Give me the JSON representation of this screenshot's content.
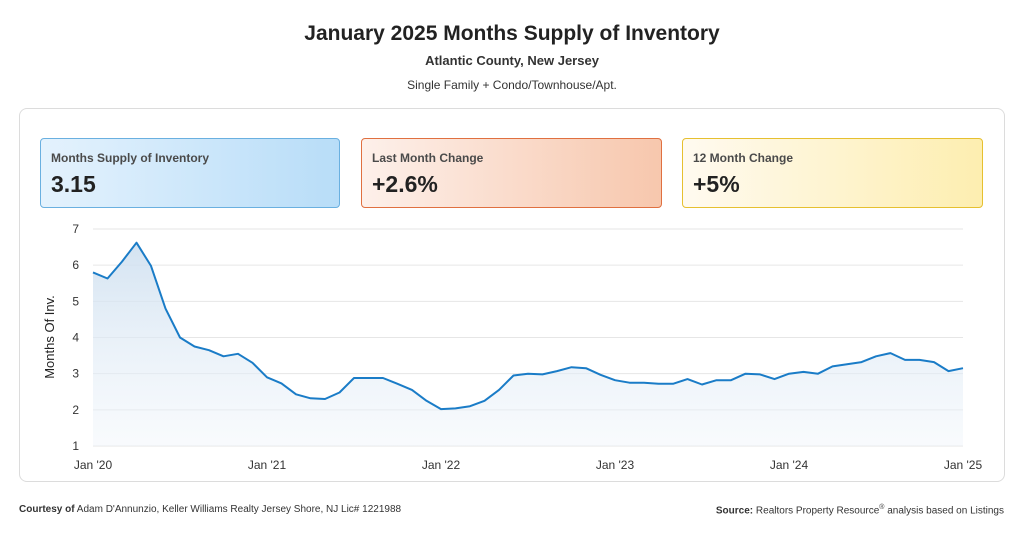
{
  "header": {
    "title": "January 2025 Months Supply of Inventory",
    "subtitle": "Atlantic County, New Jersey",
    "segment": "Single Family + Condo/Townhouse/Apt."
  },
  "kpis": [
    {
      "label": "Months Supply of Inventory",
      "value": "3.15"
    },
    {
      "label": "Last Month Change",
      "value": "+2.6%"
    },
    {
      "label": "12 Month Change",
      "value": "+5%"
    }
  ],
  "chart_data": {
    "type": "area",
    "title": "January 2025 Months Supply of Inventory",
    "ylabel": "Months Of Inv.",
    "xlabel": "",
    "ylim": [
      1,
      7
    ],
    "yticks": [
      1,
      2,
      3,
      4,
      5,
      6,
      7
    ],
    "xtick_labels": [
      "Jan '20",
      "Jan '21",
      "Jan '22",
      "Jan '23",
      "Jan '24",
      "Jan '25"
    ],
    "grid": true,
    "line_color": "#1a7cc7",
    "x": [
      "2020-01",
      "2020-02",
      "2020-03",
      "2020-04",
      "2020-05",
      "2020-06",
      "2020-07",
      "2020-08",
      "2020-09",
      "2020-10",
      "2020-11",
      "2020-12",
      "2021-01",
      "2021-02",
      "2021-03",
      "2021-04",
      "2021-05",
      "2021-06",
      "2021-07",
      "2021-08",
      "2021-09",
      "2021-10",
      "2021-11",
      "2021-12",
      "2022-01",
      "2022-02",
      "2022-03",
      "2022-04",
      "2022-05",
      "2022-06",
      "2022-07",
      "2022-08",
      "2022-09",
      "2022-10",
      "2022-11",
      "2022-12",
      "2023-01",
      "2023-02",
      "2023-03",
      "2023-04",
      "2023-05",
      "2023-06",
      "2023-07",
      "2023-08",
      "2023-09",
      "2023-10",
      "2023-11",
      "2023-12",
      "2024-01",
      "2024-02",
      "2024-03",
      "2024-04",
      "2024-05",
      "2024-06",
      "2024-07",
      "2024-08",
      "2024-09",
      "2024-10",
      "2024-11",
      "2024-12",
      "2025-01"
    ],
    "values": [
      5.8,
      5.63,
      6.1,
      6.62,
      5.98,
      4.8,
      4.0,
      3.75,
      3.65,
      3.48,
      3.55,
      3.3,
      2.9,
      2.73,
      2.43,
      2.32,
      2.3,
      2.48,
      2.88,
      2.88,
      2.88,
      2.72,
      2.55,
      2.25,
      2.02,
      2.04,
      2.1,
      2.25,
      2.55,
      2.95,
      3.0,
      2.98,
      3.07,
      3.18,
      3.15,
      2.97,
      2.82,
      2.75,
      2.75,
      2.72,
      2.72,
      2.85,
      2.7,
      2.82,
      2.82,
      3.0,
      2.98,
      2.85,
      3.0,
      3.05,
      3.0,
      3.2,
      3.26,
      3.32,
      3.48,
      3.57,
      3.38,
      3.38,
      3.32,
      3.07,
      3.15
    ]
  },
  "footer": {
    "courtesy_label": "Courtesy of",
    "courtesy_text": "Adam D'Annunzio, Keller Williams Realty Jersey Shore, NJ Lic# 1221988",
    "source_label": "Source:",
    "source_text_1": "Realtors Property Resource",
    "source_sup": "®",
    "source_text_2": "analysis based on Listings"
  }
}
